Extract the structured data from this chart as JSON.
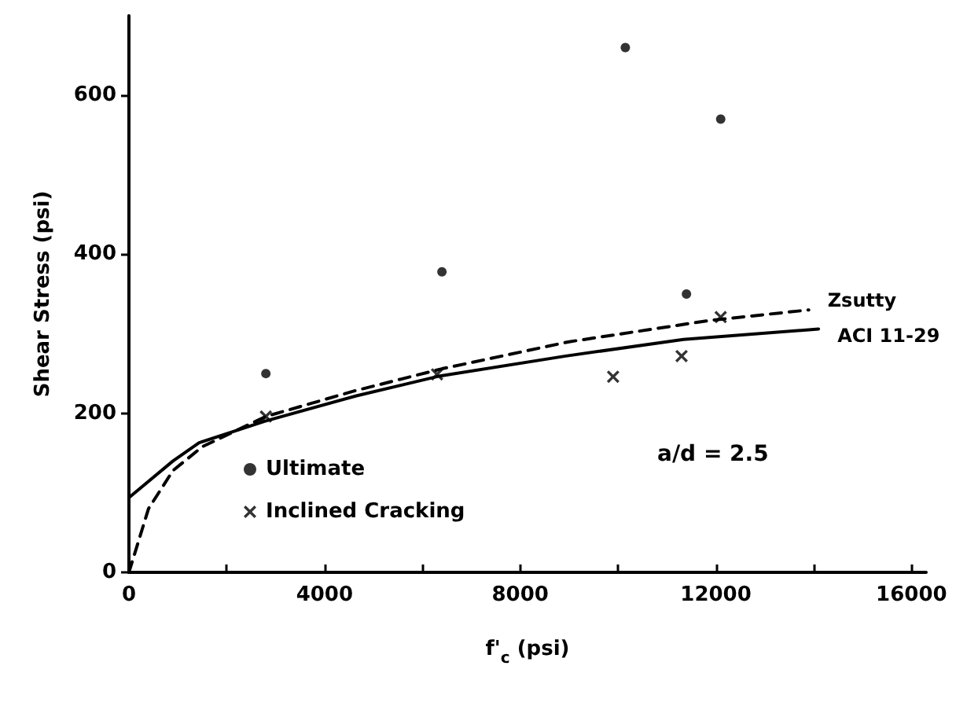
{
  "chart_data": {
    "type": "scatter",
    "xlabel": "f'$_{c}$ (psi)",
    "ylabel": "Shear Stress (psi)",
    "xlim": [
      0,
      16300
    ],
    "xticks": [
      0,
      {
        "value": 2000,
        "label": null
      },
      4000,
      {
        "value": 6000,
        "label": null
      },
      8000,
      {
        "value": 10000,
        "label": null
      },
      12000,
      {
        "value": 14000,
        "label": null
      },
      16000
    ],
    "ylim": [
      0,
      700
    ],
    "yticks": [
      0,
      200,
      400,
      600
    ],
    "grid": false,
    "legend": "bottom left",
    "annotations": [
      "a/d = 2.5"
    ],
    "series": [
      {
        "name": "Ultimate",
        "marker": "circle",
        "color": "#000000",
        "x": [
          2800,
          6400,
          10150,
          11400,
          12100
        ],
        "values": [
          250,
          378,
          660,
          350,
          570
        ]
      },
      {
        "name": "Inclined Cracking",
        "marker": "cross",
        "color": "#000000",
        "x": [
          2800,
          6300,
          9900,
          11300,
          12100
        ],
        "values": [
          196,
          249,
          246,
          272,
          321
        ]
      },
      {
        "name": "Zsutty",
        "type": "line",
        "line_style": "dashed",
        "color": "#000000",
        "x": [
          0,
          400,
          900,
          1500,
          2800,
          4600,
          6400,
          9000,
          11900,
          13900
        ],
        "values": [
          0,
          80,
          128,
          158,
          196,
          228,
          256,
          290,
          317,
          330
        ]
      },
      {
        "name": "ACI 11-29",
        "type": "line",
        "line_style": "solid",
        "color": "#000000",
        "x": [
          0,
          900,
          1435,
          2773,
          4650,
          6361,
          8930,
          11340,
          14100
        ],
        "values": [
          94,
          140,
          163,
          190,
          222,
          247,
          272,
          293,
          306
        ]
      }
    ]
  }
}
